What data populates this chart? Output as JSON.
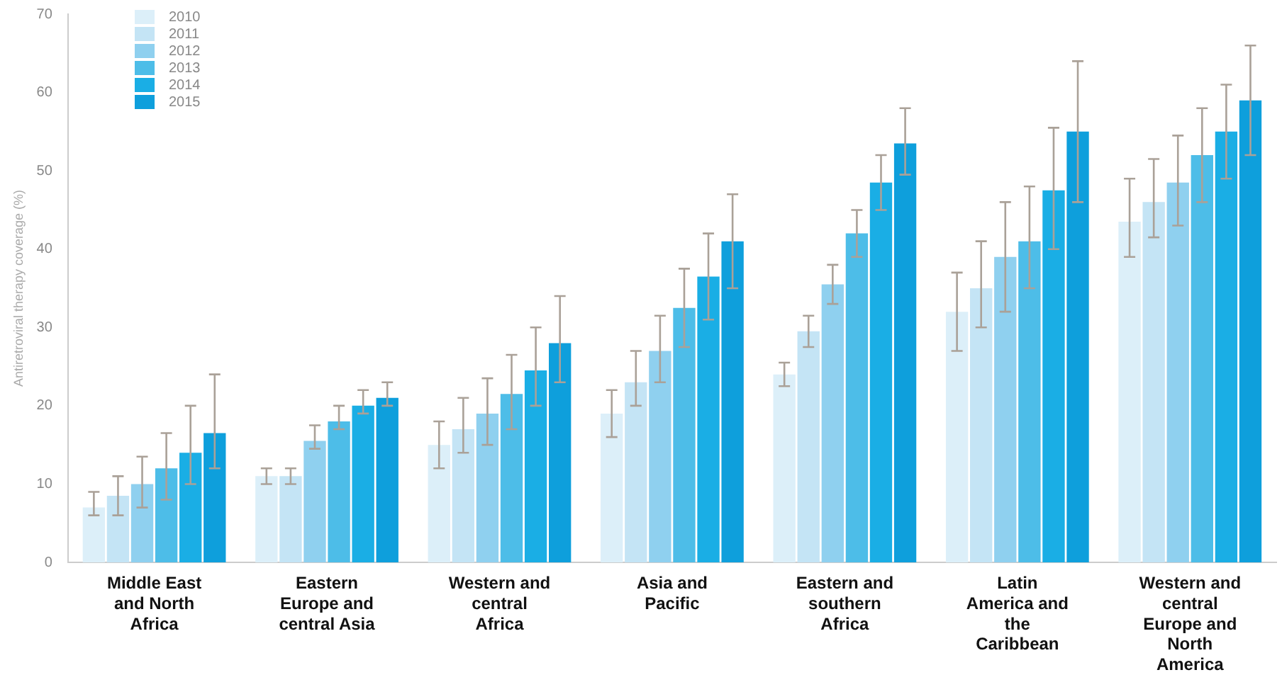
{
  "chart_data": {
    "type": "bar",
    "ylabel": "Antiretroviral therapy coverage (%)",
    "categories": [
      "Middle East and North Africa",
      "Eastern Europe and central Asia",
      "Western and central Africa",
      "Asia and Pacific",
      "Eastern and southern Africa",
      "Latin America and the Caribbean",
      "Western and central Europe and North America"
    ],
    "ylim": [
      0,
      70
    ],
    "yticks": [
      0,
      10,
      20,
      30,
      40,
      50,
      60,
      70
    ],
    "grid": false,
    "legend": "top left",
    "series": [
      {
        "name": "2010",
        "color": "#dceff9",
        "values": [
          7,
          11,
          15,
          19,
          24,
          32,
          43.5
        ],
        "errors": [
          [
            6,
            9
          ],
          [
            10,
            12
          ],
          [
            12,
            18
          ],
          [
            16,
            22
          ],
          [
            22.5,
            25.5
          ],
          [
            27,
            37
          ],
          [
            39,
            49
          ]
        ]
      },
      {
        "name": "2011",
        "color": "#c4e4f5",
        "values": [
          8.5,
          11,
          17,
          23,
          29.5,
          35,
          46
        ],
        "errors": [
          [
            6,
            11
          ],
          [
            10,
            12
          ],
          [
            14,
            21
          ],
          [
            20,
            27
          ],
          [
            27.5,
            31.5
          ],
          [
            30,
            41
          ],
          [
            41.5,
            51.5
          ]
        ]
      },
      {
        "name": "2012",
        "color": "#8fd0ef",
        "values": [
          10,
          15.5,
          19,
          27,
          35.5,
          39,
          48.5
        ],
        "errors": [
          [
            7,
            13.5
          ],
          [
            14.5,
            17.5
          ],
          [
            15,
            23.5
          ],
          [
            23,
            31.5
          ],
          [
            33,
            38
          ],
          [
            32,
            46
          ],
          [
            43,
            54.5
          ]
        ]
      },
      {
        "name": "2013",
        "color": "#4dbde8",
        "values": [
          12,
          18,
          21.5,
          32.5,
          42,
          41,
          52
        ],
        "errors": [
          [
            8,
            16.5
          ],
          [
            17,
            20
          ],
          [
            17,
            26.5
          ],
          [
            27.5,
            37.5
          ],
          [
            39,
            45
          ],
          [
            35,
            48
          ],
          [
            46,
            58
          ]
        ]
      },
      {
        "name": "2014",
        "color": "#1aaee5",
        "values": [
          14,
          20,
          24.5,
          36.5,
          48.5,
          47.5,
          55
        ],
        "errors": [
          [
            10,
            20
          ],
          [
            19,
            22
          ],
          [
            20,
            30
          ],
          [
            31,
            42
          ],
          [
            45,
            52
          ],
          [
            40,
            55.5
          ],
          [
            49,
            61
          ]
        ]
      },
      {
        "name": "2015",
        "color": "#0e9fdc",
        "values": [
          16.5,
          21,
          28,
          41,
          53.5,
          55,
          59
        ],
        "errors": [
          [
            12,
            24
          ],
          [
            20,
            23
          ],
          [
            23,
            34
          ],
          [
            35,
            47
          ],
          [
            49.5,
            58
          ],
          [
            46,
            64
          ],
          [
            52,
            66
          ]
        ]
      }
    ]
  }
}
